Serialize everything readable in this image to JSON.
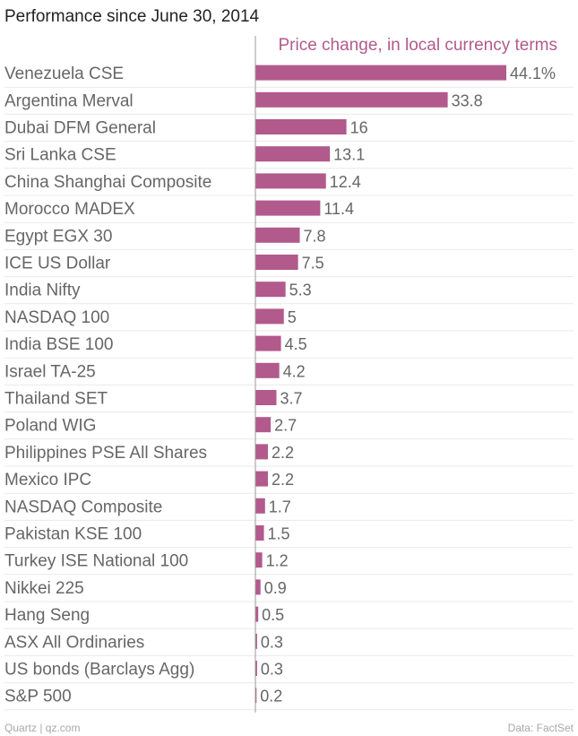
{
  "colors": {
    "bar": "#b25a8c",
    "series_title": "#b25a8c",
    "gridline": "#e9e9e9",
    "axis": "#999999"
  },
  "footer": {
    "left": "Quartz | qz.com",
    "right": "Data: FactSet"
  },
  "chart_data": {
    "type": "bar",
    "orientation": "horizontal",
    "title": "Performance since June 30, 2014",
    "series": [
      {
        "name": "Price change, in local currency terms",
        "value_suffix_first": "%"
      }
    ],
    "categories": [
      "Venezuela CSE",
      "Argentina Merval",
      "Dubai DFM General",
      "Sri Lanka CSE",
      "China Shanghai Composite",
      "Morocco MADEX",
      "Egypt EGX 30",
      "ICE US Dollar",
      "India Nifty",
      "NASDAQ 100",
      "India BSE 100",
      "Israel TA-25",
      "Thailand SET",
      "Poland WIG",
      "Philippines PSE All Shares",
      "Mexico IPC",
      "NASDAQ Composite",
      "Pakistan KSE 100",
      "Turkey ISE National 100",
      "Nikkei 225",
      "Hang Seng",
      "ASX All Ordinaries",
      "US bonds (Barclays Agg)",
      "S&P 500"
    ],
    "values": [
      44.1,
      33.8,
      16,
      13.1,
      12.4,
      11.4,
      7.8,
      7.5,
      5.3,
      5,
      4.5,
      4.2,
      3.7,
      2.7,
      2.2,
      2.2,
      1.7,
      1.5,
      1.2,
      0.9,
      0.5,
      0.3,
      0.3,
      0.2
    ],
    "value_labels": [
      "44.1%",
      "33.8",
      "16",
      "13.1",
      "12.4",
      "11.4",
      "7.8",
      "7.5",
      "5.3",
      "5",
      "4.5",
      "4.2",
      "3.7",
      "2.7",
      "2.2",
      "2.2",
      "1.7",
      "1.5",
      "1.2",
      "0.9",
      "0.5",
      "0.3",
      "0.3",
      "0.2"
    ],
    "xlim": [
      0,
      44.1
    ],
    "grid": true,
    "legend": "none"
  }
}
